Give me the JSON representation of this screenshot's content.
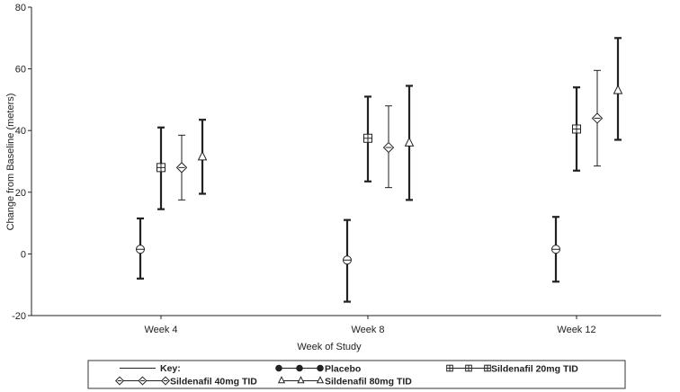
{
  "chart_data": {
    "type": "scatter",
    "title": "",
    "xlabel": "Week of Study",
    "ylabel": "Change from Baseline (meters)",
    "categories": [
      "Week 4",
      "Week 8",
      "Week 12"
    ],
    "ylim": [
      -20,
      80
    ],
    "yticks": [
      -20,
      0,
      20,
      40,
      60,
      80
    ],
    "grid": false,
    "legend_position": "bottom",
    "legend_key_label": "Key:",
    "series": [
      {
        "name": "Placebo",
        "marker": "circle-cross",
        "mean": [
          1.5,
          -2,
          1.5
        ],
        "lower": [
          -8,
          -15.5,
          -9
        ],
        "upper": [
          11.5,
          11,
          12
        ]
      },
      {
        "name": "Sildenafil 20mg TID",
        "marker": "square-cross",
        "mean": [
          28,
          37.5,
          40.5
        ],
        "lower": [
          14.5,
          23.5,
          27
        ],
        "upper": [
          41,
          51,
          54
        ]
      },
      {
        "name": "Sildenafil 40mg TID",
        "marker": "diamond-cross",
        "mean": [
          28,
          34.5,
          44
        ],
        "lower": [
          17.5,
          21.5,
          28.5
        ],
        "upper": [
          38.5,
          48,
          59.5
        ]
      },
      {
        "name": "Sildenafil 80mg TID",
        "marker": "triangle",
        "mean": [
          31.5,
          36,
          53
        ],
        "lower": [
          19.5,
          17.5,
          37
        ],
        "upper": [
          43.5,
          54.5,
          70
        ]
      }
    ]
  }
}
